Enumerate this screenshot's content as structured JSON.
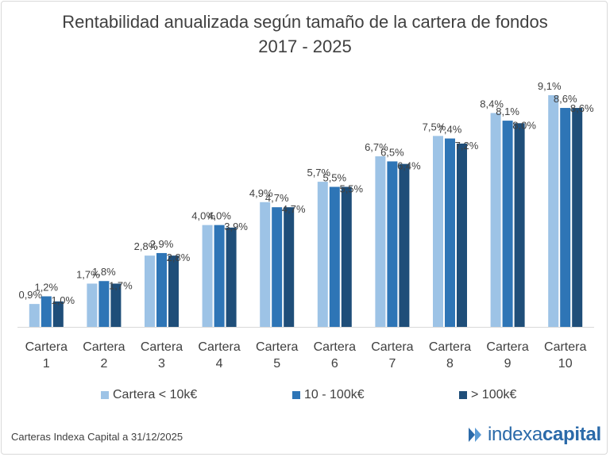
{
  "colors": {
    "series": [
      "#9dc3e6",
      "#2e75b6",
      "#1f4e79"
    ],
    "axis": "#d9d9d9",
    "brand": "#2b6aa9"
  },
  "footer": {
    "note": "Carteras Indexa Capital a 31/12/2025",
    "brand_light": "indexa",
    "brand_bold": "capital",
    "logo_icon": "indexa-arrows-logo"
  },
  "chart_data": {
    "type": "bar",
    "title": "Rentabilidad anualizada según tamaño de la cartera de fondos",
    "subtitle": "2017 - 2025",
    "categories": [
      [
        "Cartera",
        "1"
      ],
      [
        "Cartera",
        "2"
      ],
      [
        "Cartera",
        "3"
      ],
      [
        "Cartera",
        "4"
      ],
      [
        "Cartera",
        "5"
      ],
      [
        "Cartera",
        "6"
      ],
      [
        "Cartera",
        "7"
      ],
      [
        "Cartera",
        "8"
      ],
      [
        "Cartera",
        "9"
      ],
      [
        "Cartera",
        "10"
      ]
    ],
    "series": [
      {
        "name": "Cartera < 10k€",
        "values": [
          0.9,
          1.7,
          2.8,
          4.0,
          4.9,
          5.7,
          6.7,
          7.5,
          8.4,
          9.1
        ],
        "labels": [
          "0,9%",
          "1,7%",
          "2,8%",
          "4,0%",
          "4,9%",
          "5,7%",
          "6,7%",
          "7,5%",
          "8,4%",
          "9,1%"
        ]
      },
      {
        "name": "10 - 100k€",
        "values": [
          1.2,
          1.8,
          2.9,
          4.0,
          4.7,
          5.5,
          6.5,
          7.4,
          8.1,
          8.6
        ],
        "labels": [
          "1,2%",
          "1,8%",
          "2,9%",
          "4,0%",
          "4,7%",
          "5,5%",
          "6,5%",
          "7,4%",
          "8,1%",
          "8,6%"
        ]
      },
      {
        "name": "> 100k€",
        "values": [
          1.0,
          1.7,
          2.8,
          3.9,
          4.7,
          5.5,
          6.4,
          7.2,
          8.0,
          8.6
        ],
        "labels": [
          "1,0%",
          "1,7%",
          "2,8%",
          "3,9%",
          "4,7%",
          "5,5%",
          "6,4%",
          "7,2%",
          "8,0%",
          "8,6%"
        ]
      }
    ],
    "unit": "%",
    "ylim": [
      0,
      10
    ],
    "grid": false,
    "legend_position": "bottom"
  }
}
